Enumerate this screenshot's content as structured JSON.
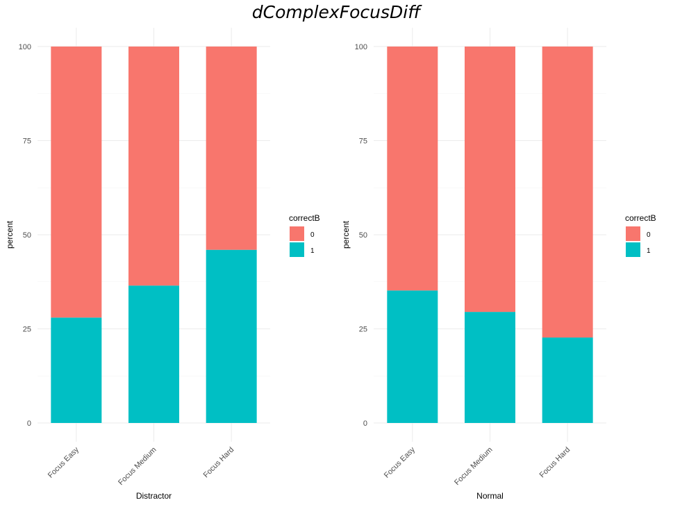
{
  "title": "dComplexFocusDiff",
  "legend": {
    "title": "correctB",
    "entries": [
      {
        "label": "0",
        "color": "#F8766D"
      },
      {
        "label": "1",
        "color": "#00BFC4"
      }
    ]
  },
  "chart_data": [
    {
      "type": "bar",
      "stacked": true,
      "categories": [
        "Focus Easy",
        "Focus Medium",
        "Focus Hard"
      ],
      "series": [
        {
          "name": "1",
          "values": [
            28,
            36.5,
            46
          ]
        },
        {
          "name": "0",
          "values": [
            72,
            63.5,
            54
          ]
        }
      ],
      "xlabel": "Distractor",
      "ylabel": "percent",
      "ylim": [
        0,
        100
      ],
      "yticks": [
        "0",
        "25",
        "50",
        "75",
        "100"
      ],
      "grid": true,
      "legend_position": "right"
    },
    {
      "type": "bar",
      "stacked": true,
      "categories": [
        "Focus Easy",
        "Focus Medium",
        "Focus Hard"
      ],
      "series": [
        {
          "name": "1",
          "values": [
            35.2,
            29.5,
            22.7
          ]
        },
        {
          "name": "0",
          "values": [
            64.8,
            70.5,
            77.3
          ]
        }
      ],
      "xlabel": "Normal",
      "ylabel": "percent",
      "ylim": [
        0,
        100
      ],
      "yticks": [
        "0",
        "25",
        "50",
        "75",
        "100"
      ],
      "grid": true,
      "legend_position": "right"
    }
  ]
}
